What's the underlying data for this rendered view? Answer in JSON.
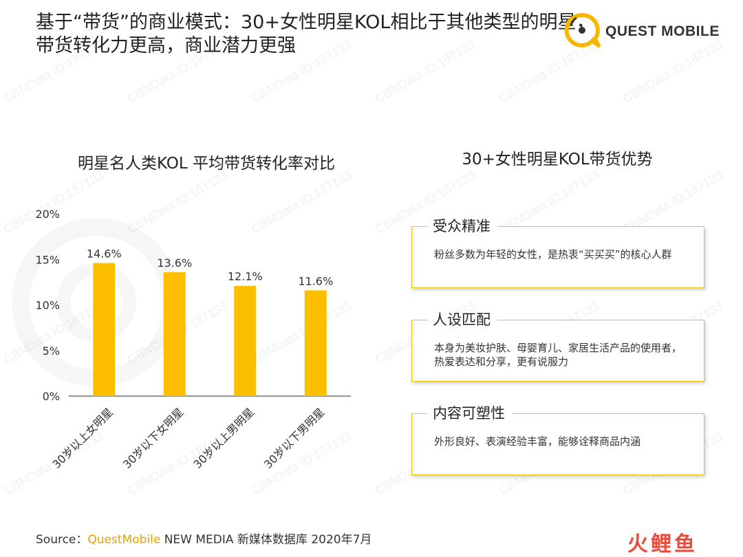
{
  "title_lines": [
    "基于“带货”的商业模式：30+女性明星KOL相比于其他类型的明星，",
    "带货转化力更高，商业潜力更强"
  ],
  "logo_text": "QUEST MOBILE",
  "chart_title": "明星名人类KOL 平均带货转化率对比",
  "advantages_title": "30+女性明星KOL带货优势",
  "advantages": [
    {
      "title": "受众精准",
      "desc": "粉丝多数为年轻的女性，是热衷“买买买”的核心人群"
    },
    {
      "title": "人设匹配",
      "desc": "本身为美妆护肤、母婴育儿、家居生活产品的使用者，热爱表达和分享，更有说服力"
    },
    {
      "title": "内容可塑性",
      "desc": "外形良好、表演经验丰富，能够诠释商品内涵"
    }
  ],
  "source": {
    "prefix": "Source：",
    "brand": "QuestMobile",
    "rest": " NEW MEDIA 新媒体数据库 2020年7月"
  },
  "corner_logo": "火鲤鱼",
  "watermark": "CBNData ID:187133",
  "colors": {
    "bar": "#fbbf00",
    "card_border": "#f2c200",
    "source_brand": "#e8a000",
    "corner_logo": "#e84c3d"
  },
  "chart_data": {
    "type": "bar",
    "title": "明星名人类KOL 平均带货转化率对比",
    "categories": [
      "30岁以上女明星",
      "30岁以下女明星",
      "30岁以上男明星",
      "30岁以下男明星"
    ],
    "values": [
      14.6,
      13.6,
      12.1,
      11.6
    ],
    "value_labels": [
      "14.6%",
      "13.6%",
      "12.1%",
      "11.6%"
    ],
    "yticks": [
      "0%",
      "5%",
      "10%",
      "15%",
      "20%"
    ],
    "ylim": [
      0,
      20
    ],
    "grid": false,
    "xlabel": "",
    "ylabel": ""
  }
}
